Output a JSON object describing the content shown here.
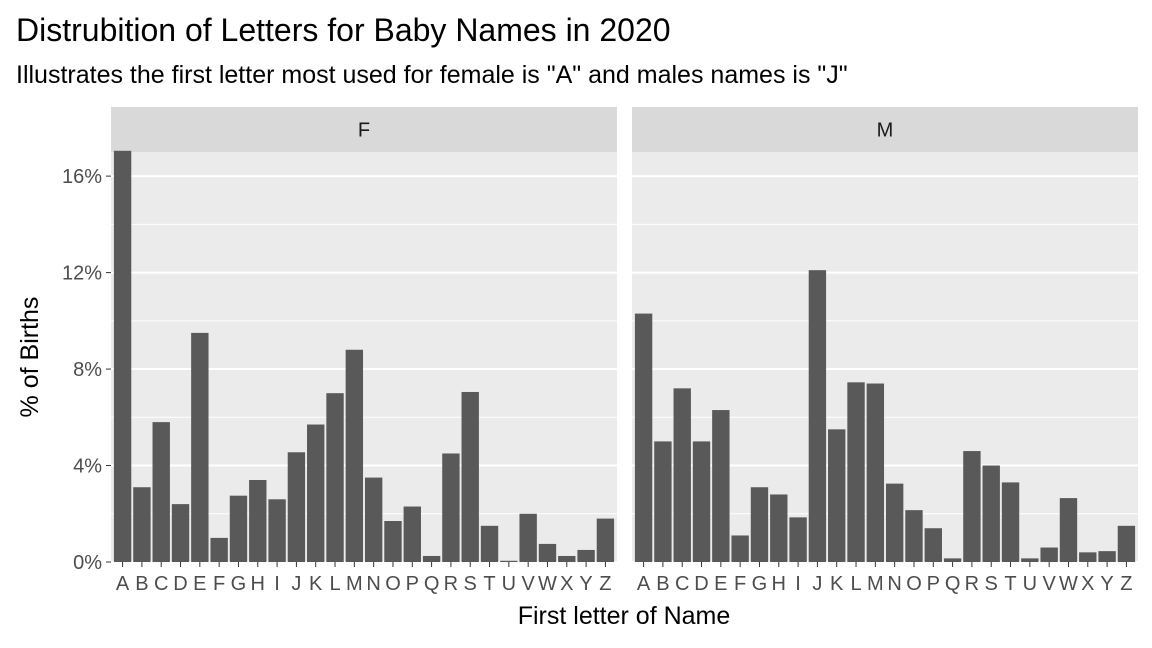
{
  "chart_data": {
    "type": "bar",
    "title": "Distrubition of Letters for Baby Names in 2020",
    "subtitle": "Illustrates the first letter most used for female is \"A\" and males names is \"J\"",
    "xlabel": "First letter of Name",
    "ylabel": "% of Births",
    "ylim": [
      0,
      17
    ],
    "yticks": [
      0,
      4,
      8,
      12,
      16
    ],
    "ytick_labels": [
      "0%",
      "4%",
      "8%",
      "12%",
      "16%"
    ],
    "grid": true,
    "categories": [
      "A",
      "B",
      "C",
      "D",
      "E",
      "F",
      "G",
      "H",
      "I",
      "J",
      "K",
      "L",
      "M",
      "N",
      "O",
      "P",
      "Q",
      "R",
      "S",
      "T",
      "U",
      "V",
      "W",
      "X",
      "Y",
      "Z"
    ],
    "panels": [
      {
        "name": "F",
        "values": [
          17.05,
          3.1,
          5.8,
          2.4,
          9.5,
          1.0,
          2.75,
          3.4,
          2.6,
          4.55,
          5.7,
          7.0,
          8.8,
          3.5,
          1.7,
          2.3,
          0.25,
          4.5,
          7.05,
          1.5,
          0.05,
          2.0,
          0.75,
          0.25,
          0.5,
          1.8
        ]
      },
      {
        "name": "M",
        "values": [
          10.3,
          5.0,
          7.2,
          5.0,
          6.3,
          1.1,
          3.1,
          2.8,
          1.85,
          12.1,
          5.5,
          7.45,
          7.4,
          3.25,
          2.15,
          1.4,
          0.15,
          4.6,
          4.0,
          3.3,
          0.15,
          0.6,
          2.65,
          0.4,
          0.45,
          1.5
        ]
      }
    ],
    "colors": {
      "bar": "#595959",
      "panel_bg": "#ebebeb",
      "strip_bg": "#d9d9d9",
      "grid": "#ffffff",
      "tick_text": "#4d4d4d",
      "strip_text": "#1a1a1a"
    }
  }
}
